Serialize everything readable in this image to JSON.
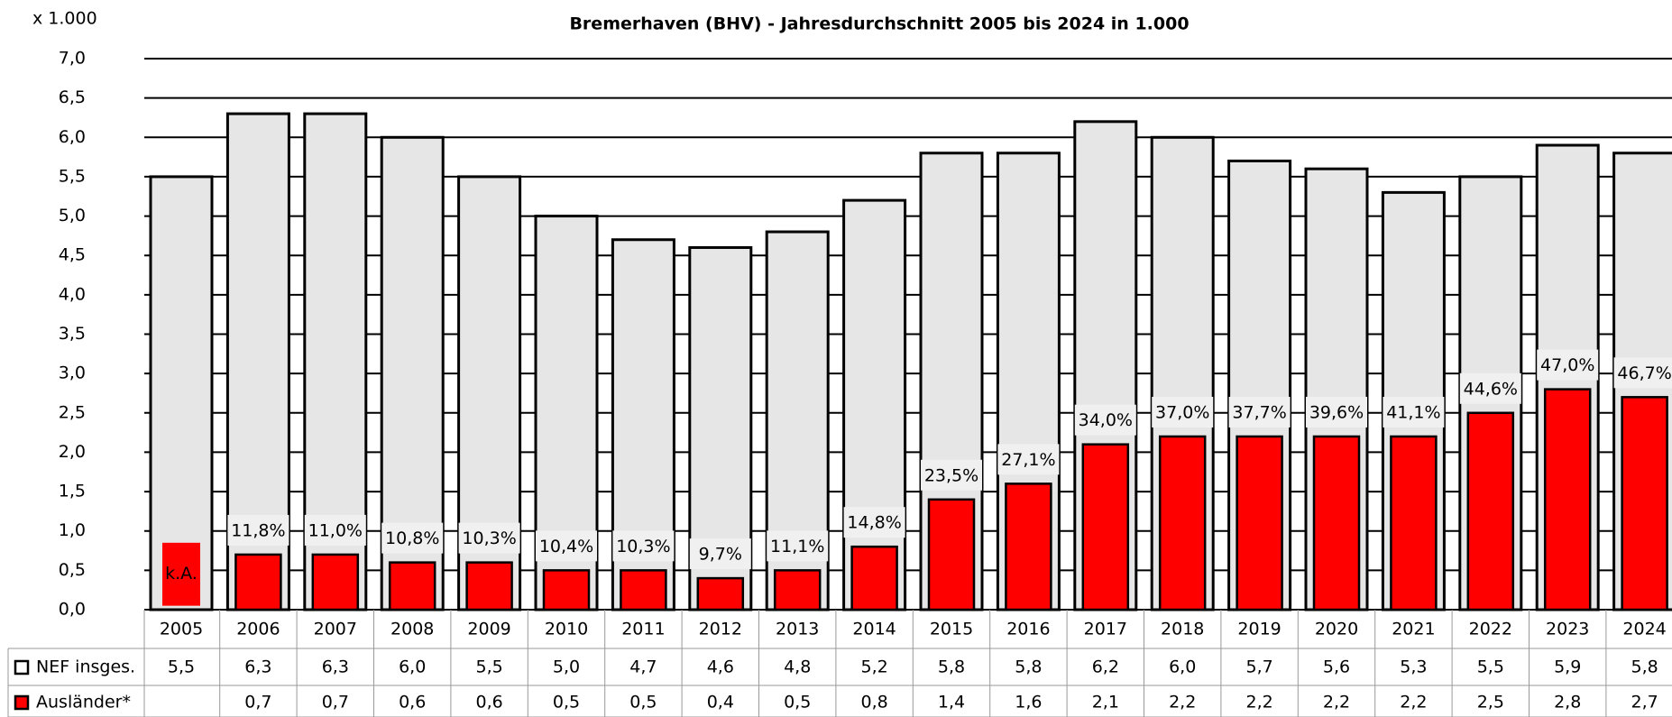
{
  "chart_data": {
    "type": "bar",
    "title": "Bremerhaven (BHV) - Jahresdurchschnitt 2005 bis 2024 in 1.000",
    "y_unit_label": "x 1.000",
    "categories": [
      "2005",
      "2006",
      "2007",
      "2008",
      "2009",
      "2010",
      "2011",
      "2012",
      "2013",
      "2014",
      "2015",
      "2016",
      "2017",
      "2018",
      "2019",
      "2020",
      "2021",
      "2022",
      "2023",
      "2024"
    ],
    "series": [
      {
        "name": "NEF insges.",
        "color": "#e6e6e6",
        "values": [
          5.5,
          6.3,
          6.3,
          6.0,
          5.5,
          5.0,
          4.7,
          4.6,
          4.8,
          5.2,
          5.8,
          5.8,
          6.2,
          6.0,
          5.7,
          5.6,
          5.3,
          5.5,
          5.9,
          5.8
        ],
        "value_labels": [
          "5,5",
          "6,3",
          "6,3",
          "6,0",
          "5,5",
          "5,0",
          "4,7",
          "4,6",
          "4,8",
          "5,2",
          "5,8",
          "5,8",
          "6,2",
          "6,0",
          "5,7",
          "5,6",
          "5,3",
          "5,5",
          "5,9",
          "5,8"
        ]
      },
      {
        "name": "Ausländer*",
        "color": "#ff0000",
        "values": [
          null,
          0.7,
          0.7,
          0.6,
          0.6,
          0.5,
          0.5,
          0.4,
          0.5,
          0.8,
          1.4,
          1.6,
          2.1,
          2.2,
          2.2,
          2.2,
          2.2,
          2.5,
          2.8,
          2.7
        ],
        "value_labels": [
          null,
          "0,7",
          "0,7",
          "0,6",
          "0,6",
          "0,5",
          "0,5",
          "0,4",
          "0,5",
          "0,8",
          "1,4",
          "1,6",
          "2,1",
          "2,2",
          "2,2",
          "2,2",
          "2,2",
          "2,5",
          "2,8",
          "2,7"
        ],
        "shares": [
          null,
          11.8,
          11.0,
          10.8,
          10.3,
          10.4,
          10.3,
          9.7,
          11.1,
          14.8,
          23.5,
          27.1,
          34.0,
          37.0,
          37.7,
          39.6,
          41.1,
          44.6,
          47.0,
          46.7
        ],
        "share_labels": [
          null,
          "11,8%",
          "11,0%",
          "10,8%",
          "10,3%",
          "10,4%",
          "10,3%",
          "9,7%",
          "11,1%",
          "14,8%",
          "23,5%",
          "27,1%",
          "34,0%",
          "37,0%",
          "37,7%",
          "39,6%",
          "41,1%",
          "44,6%",
          "47,0%",
          "46,7%"
        ],
        "na_label": "k.A."
      }
    ],
    "ylim": [
      0,
      7
    ],
    "yticks": [
      {
        "value": 0,
        "label": "0,0"
      },
      {
        "value": 0.5,
        "label": "0,5"
      },
      {
        "value": 1,
        "label": "1,0"
      },
      {
        "value": 1.5,
        "label": "1,5"
      },
      {
        "value": 2,
        "label": "2,0"
      },
      {
        "value": 2.5,
        "label": "2,5"
      },
      {
        "value": 3,
        "label": "3,0"
      },
      {
        "value": 3.5,
        "label": "3,5"
      },
      {
        "value": 4,
        "label": "4,0"
      },
      {
        "value": 4.5,
        "label": "4,5"
      },
      {
        "value": 5,
        "label": "5,0"
      },
      {
        "value": 5.5,
        "label": "5,5"
      },
      {
        "value": 6,
        "label": "6,0"
      },
      {
        "value": 6.5,
        "label": "6,5"
      },
      {
        "value": 7,
        "label": "7,0"
      }
    ],
    "grid": true
  }
}
